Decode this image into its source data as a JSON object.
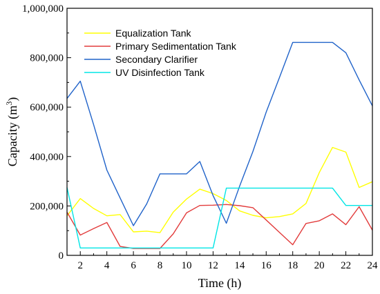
{
  "chart_data": {
    "type": "line",
    "xlabel": "Time (h)",
    "ylabel_main": "Capacity (m",
    "ylabel_sup": "3",
    "ylabel_close": ")",
    "xlim": [
      1,
      24
    ],
    "ylim": [
      0,
      1000000
    ],
    "x_ticks": [
      2,
      4,
      6,
      8,
      10,
      12,
      14,
      16,
      18,
      20,
      22,
      24
    ],
    "x_tick_labels": [
      "2",
      "4",
      "6",
      "8",
      "10",
      "12",
      "14",
      "16",
      "18",
      "20",
      "22",
      "24"
    ],
    "y_ticks": [
      0,
      200000,
      400000,
      600000,
      800000,
      1000000
    ],
    "y_tick_labels": [
      "0",
      "200,000",
      "400,000",
      "600,000",
      "800,000",
      "1,000,000"
    ],
    "grid": false,
    "legend_position": "top-left",
    "x": [
      1,
      2,
      3,
      4,
      5,
      6,
      7,
      8,
      9,
      10,
      11,
      12,
      13,
      14,
      15,
      16,
      17,
      18,
      19,
      20,
      21,
      22,
      23,
      24
    ],
    "series": [
      {
        "name": "Equalization Tank",
        "color": "#FFFF00",
        "values": [
          160000,
          230000,
          190000,
          160000,
          165000,
          95000,
          98000,
          92000,
          175000,
          228000,
          268000,
          250000,
          222000,
          180000,
          162000,
          152000,
          157000,
          168000,
          210000,
          335000,
          437000,
          418000,
          275000,
          298000
        ]
      },
      {
        "name": "Primary Sedimentation Tank",
        "color": "#E23B3B",
        "values": [
          175000,
          82000,
          108000,
          133000,
          36000,
          28000,
          28000,
          28000,
          87000,
          172000,
          202000,
          203000,
          206000,
          201000,
          193000,
          143000,
          93000,
          43000,
          129000,
          140000,
          168000,
          124000,
          197000,
          102000
        ]
      },
      {
        "name": "Secondary Clarifier",
        "color": "#1F62C9",
        "values": [
          635000,
          705000,
          530000,
          345000,
          232000,
          120000,
          208000,
          330000,
          330000,
          330000,
          380000,
          242000,
          130000,
          280000,
          420000,
          580000,
          720000,
          862000,
          862000,
          862000,
          862000,
          820000,
          710000,
          605000
        ]
      },
      {
        "name": "UV Disinfection Tank",
        "color": "#00E5E5",
        "values": [
          275000,
          30000,
          30000,
          30000,
          30000,
          30000,
          30000,
          30000,
          30000,
          30000,
          30000,
          30000,
          272000,
          272000,
          272000,
          272000,
          272000,
          272000,
          272000,
          272000,
          272000,
          202000,
          202000,
          202000
        ]
      }
    ]
  }
}
